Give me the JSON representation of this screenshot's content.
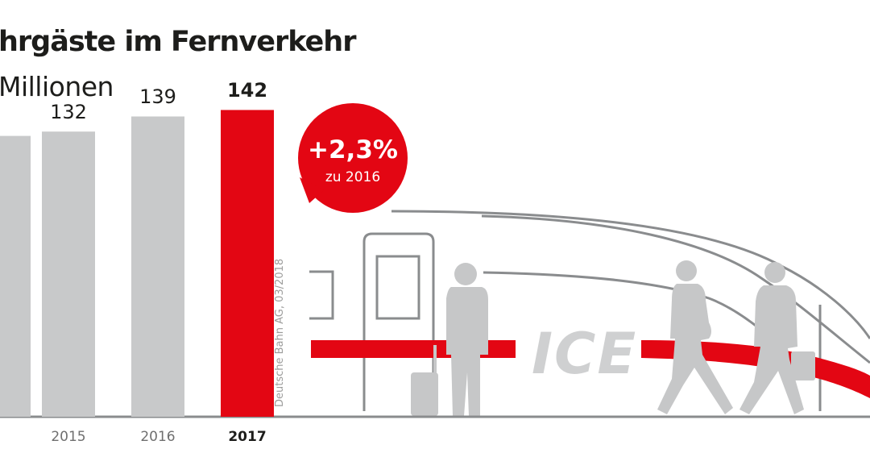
{
  "chart_data": {
    "type": "bar",
    "title": "hrgäste im Fernverkehr",
    "subtitle": "Millionen",
    "unit": "Millionen",
    "categories": [
      "",
      "2015",
      "2016",
      "2017"
    ],
    "values": [
      null,
      132,
      139,
      142
    ],
    "value_labels": [
      "",
      "132",
      "139",
      "142"
    ],
    "highlight_index": 3,
    "ylim": [
      0,
      150
    ],
    "grid": false,
    "legend": "none",
    "annotation": {
      "main": "+2,3%",
      "sub": "zu 2016"
    },
    "source": "Deutsche Bahn AG, 03/2018",
    "illustration_text": "ICE"
  },
  "colors": {
    "bar": "#c8c9ca",
    "highlight": "#e30613",
    "text": "#1d1d1b",
    "axis_label": "#6f6f6f",
    "train_line": "#8a8c8e",
    "people": "#c6c7c8",
    "source": "#9d9d9c"
  },
  "icons": [
    "train-ice-illustration",
    "traveler-with-suitcase-icon",
    "walking-traveler-icon",
    "traveler-with-briefcase-icon"
  ]
}
